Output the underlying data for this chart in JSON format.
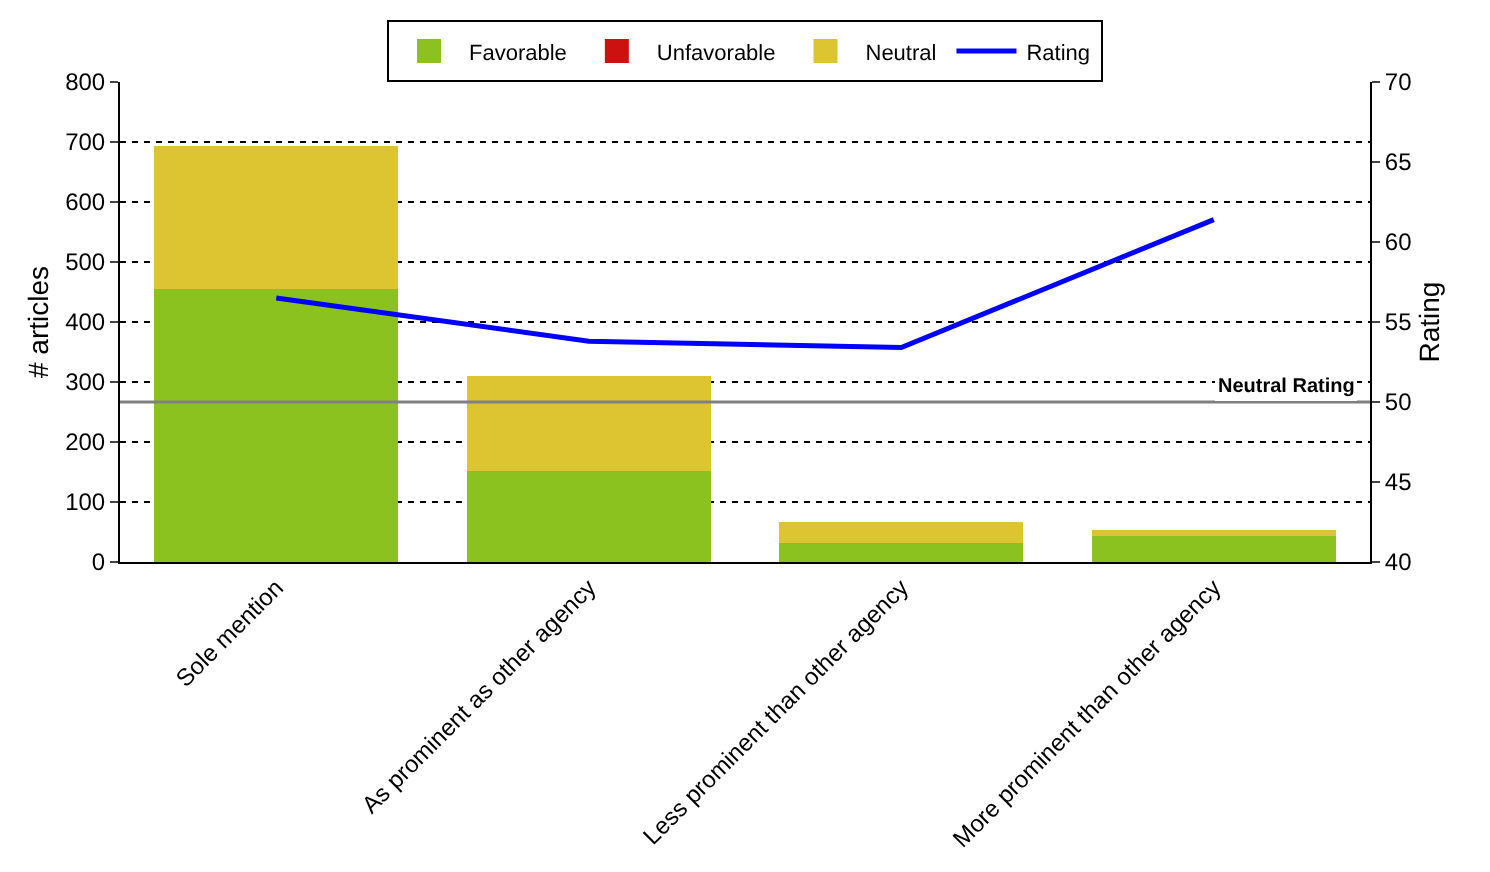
{
  "chart_data": {
    "type": "bar",
    "stacked": true,
    "ylabel": "# articles",
    "y2label": "Rating",
    "categories": [
      "Sole mention",
      "As prominent as other agency",
      "Less prominent than other agency",
      "More prominent than other agency"
    ],
    "series": [
      {
        "name": "Favorable",
        "color": "#8cc21f",
        "values": [
          455,
          152,
          31,
          43
        ]
      },
      {
        "name": "Unfavorable",
        "color": "#cc1111",
        "values": [
          0,
          0,
          0,
          0
        ]
      },
      {
        "name": "Neutral",
        "color": "#dcc530",
        "values": [
          238,
          158,
          35,
          11
        ]
      },
      {
        "name": "Rating",
        "type": "line",
        "axis": "y2",
        "color": "#0000ff",
        "values": [
          56.5,
          53.8,
          53.4,
          61.4
        ]
      }
    ],
    "ylim": [
      0,
      800
    ],
    "yticks": [
      0,
      100,
      200,
      300,
      400,
      500,
      600,
      700,
      800
    ],
    "y2lim": [
      40,
      70
    ],
    "y2ticks": [
      40,
      45,
      50,
      55,
      60,
      65,
      70
    ],
    "ref_lines": [
      {
        "axis": "y2",
        "value": 50,
        "label": "Neutral Rating",
        "color": "#808080"
      }
    ],
    "grid": "y",
    "legend": "top"
  }
}
